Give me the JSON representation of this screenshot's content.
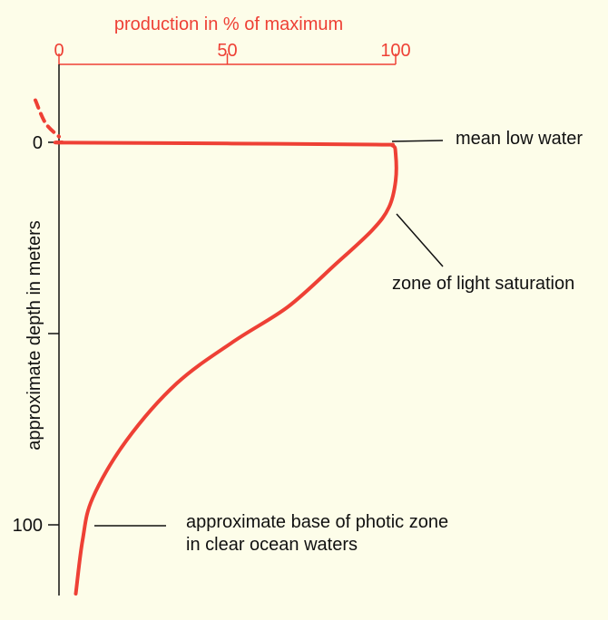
{
  "chart_data": {
    "type": "line",
    "title": "",
    "xlabel": "production in % of maximum",
    "ylabel": "approximate depth in meters",
    "x_ticks": [
      "0",
      "50",
      "100"
    ],
    "y_ticks": [
      "0",
      "",
      "",
      "100"
    ],
    "x_range": [
      0,
      100
    ],
    "y_range_top_to_bottom": [
      0,
      100
    ],
    "series": [
      {
        "values": [
          {
            "x": 1,
            "y": 0
          },
          {
            "x": 3,
            "y": 0.1
          },
          {
            "x": 50,
            "y": 0.3
          },
          {
            "x": 94,
            "y": 0.6
          },
          {
            "x": 99,
            "y": 0.8
          },
          {
            "x": 100,
            "y": 3
          },
          {
            "x": 100,
            "y": 10
          },
          {
            "x": 98,
            "y": 17
          },
          {
            "x": 93,
            "y": 23
          },
          {
            "x": 82,
            "y": 32
          },
          {
            "x": 68,
            "y": 43
          },
          {
            "x": 52,
            "y": 52
          },
          {
            "x": 35,
            "y": 63
          },
          {
            "x": 20,
            "y": 78
          },
          {
            "x": 10,
            "y": 93
          },
          {
            "x": 7,
            "y": 104
          },
          {
            "x": 5,
            "y": 118
          }
        ]
      }
    ],
    "dashed_extension": [
      {
        "x": -7,
        "y": -11
      },
      {
        "x": -4,
        "y": -5
      },
      {
        "x": 0,
        "y": -1.5
      }
    ],
    "annotations": [
      {
        "text": "mean low water"
      },
      {
        "text": "zone of light saturation"
      },
      {
        "text": "approximate base of photic zone"
      },
      {
        "text": "in clear ocean waters"
      }
    ],
    "colors": {
      "curve": "#ee4035",
      "axis_top": "#ee4035",
      "axis_left": "#111111",
      "background": "#fdfde9"
    }
  }
}
